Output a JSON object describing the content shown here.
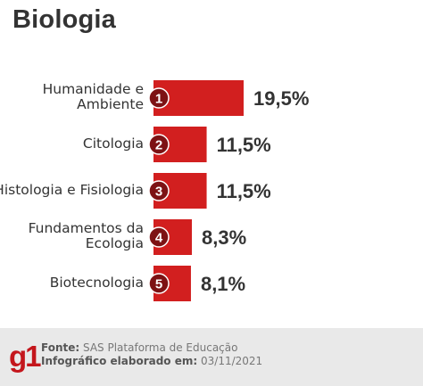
{
  "title": "Biologia",
  "colors": {
    "bar": "#d21f1f",
    "badge": "#7d1214",
    "text": "#333333",
    "footer": "#e9e9e9"
  },
  "chart_data": {
    "type": "bar",
    "orientation": "horizontal",
    "categories": [
      "Humanidade e Ambiente",
      "Citologia",
      "Histologia e Fisiologia",
      "Fundamentos da Ecologia",
      "Biotecnologia"
    ],
    "category_lines": [
      [
        "Humanidade e",
        "Ambiente"
      ],
      [
        "Citologia"
      ],
      [
        "Histologia e Fisiologia"
      ],
      [
        "Fundamentos da",
        "Ecologia"
      ],
      [
        "Biotecnologia"
      ]
    ],
    "ranks": [
      "1",
      "2",
      "3",
      "4",
      "5"
    ],
    "values": [
      19.5,
      11.5,
      11.5,
      8.3,
      8.1
    ],
    "value_labels": [
      "19,5%",
      "11,5%",
      "11,5%",
      "8,3%",
      "8,1%"
    ],
    "title": "Biologia",
    "xlabel": "",
    "ylabel": ""
  },
  "footer": {
    "logo": "g1",
    "source_label": "Fonte:",
    "source_text": "SAS Plataforma de Educação",
    "credit_label": "Infográfico elaborado em:",
    "credit_text": "03/11/2021"
  }
}
